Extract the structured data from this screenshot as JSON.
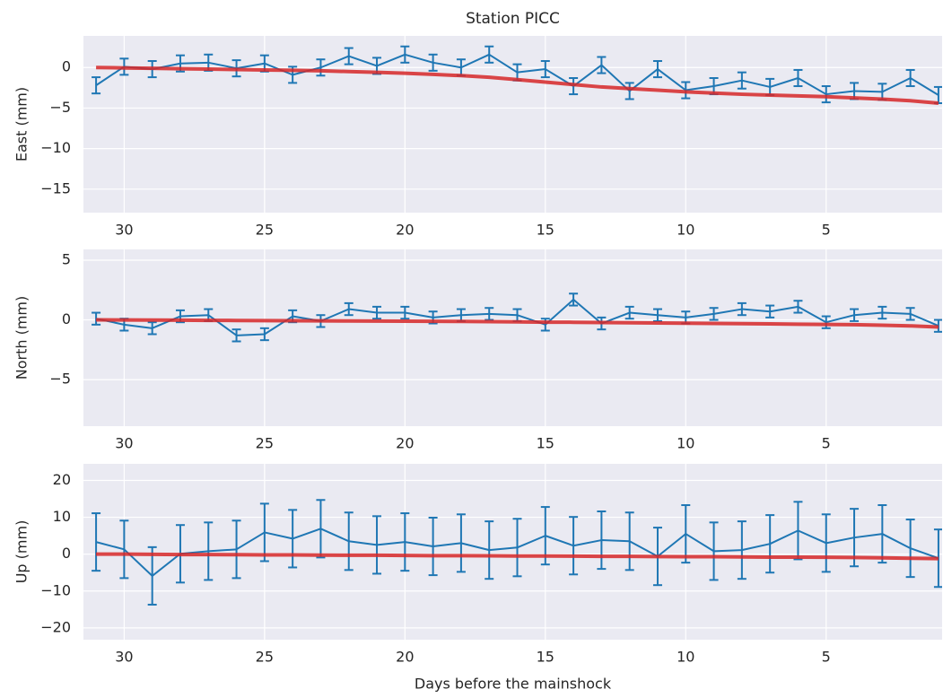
{
  "chart_data": [
    {
      "type": "line",
      "title": "Station PICC",
      "ylabel": "East (mm)",
      "x": [
        31,
        30,
        29,
        28,
        27,
        26,
        25,
        24,
        23,
        22,
        21,
        20,
        19,
        18,
        17,
        16,
        15,
        14,
        13,
        12,
        11,
        10,
        9,
        8,
        7,
        6,
        5,
        4,
        3,
        2,
        1
      ],
      "xlim": [
        31.45,
        0.87
      ],
      "xticks": [
        30,
        25,
        20,
        15,
        10,
        5
      ],
      "ylim": [
        -17.9,
        3.9
      ],
      "yticks": [
        0,
        {
          "value": -5,
          "label": "−5"
        },
        {
          "value": -10,
          "label": "−10"
        },
        {
          "value": -15,
          "label": "−15"
        }
      ],
      "grid": true,
      "series": [
        {
          "color": "#1f77b4",
          "values": [
            -2.2,
            0.1,
            -0.2,
            0.5,
            0.6,
            -0.1,
            0.5,
            -0.9,
            0,
            1.4,
            0.2,
            1.6,
            0.6,
            0,
            1.6,
            -0.6,
            -0.2,
            -2.3,
            0.3,
            -2.9,
            -0.2,
            -2.8,
            -2.3,
            -1.6,
            -2.4,
            -1.3,
            -3.3,
            -2.9,
            -3.0,
            -1.3,
            -3.4
          ],
          "errors": [
            1,
            1,
            1,
            1,
            1,
            1,
            1,
            1,
            1,
            1,
            1,
            1,
            1,
            1,
            1,
            1,
            1,
            1,
            1,
            1,
            1,
            1,
            1,
            1,
            1,
            1,
            1,
            1,
            1,
            1,
            1
          ]
        },
        {
          "color": "#d62728",
          "values": [
            0,
            -0.05,
            -0.1,
            -0.15,
            -0.2,
            -0.25,
            -0.3,
            -0.35,
            -0.4,
            -0.5,
            -0.6,
            -0.7,
            -0.85,
            -1.0,
            -1.2,
            -1.5,
            -1.8,
            -2.1,
            -2.4,
            -2.6,
            -2.8,
            -3.0,
            -3.15,
            -3.3,
            -3.4,
            -3.5,
            -3.6,
            -3.75,
            -3.9,
            -4.1,
            -4.4
          ]
        }
      ]
    },
    {
      "type": "line",
      "ylabel": "North (mm)",
      "x": [
        31,
        30,
        29,
        28,
        27,
        26,
        25,
        24,
        23,
        22,
        21,
        20,
        19,
        18,
        17,
        16,
        15,
        14,
        13,
        12,
        11,
        10,
        9,
        8,
        7,
        6,
        5,
        4,
        3,
        2,
        1
      ],
      "xlim": [
        31.45,
        0.87
      ],
      "xticks": [
        30,
        25,
        20,
        15,
        10,
        5
      ],
      "ylim": [
        -8.9,
        5.9
      ],
      "yticks": [
        5,
        0,
        {
          "value": -5,
          "label": "−5"
        }
      ],
      "grid": true,
      "series": [
        {
          "color": "#1f77b4",
          "values": [
            0.1,
            -0.4,
            -0.7,
            0.3,
            0.4,
            -1.3,
            -1.2,
            0.3,
            -0.1,
            0.9,
            0.6,
            0.6,
            0.2,
            0.4,
            0.5,
            0.4,
            -0.4,
            1.7,
            -0.3,
            0.6,
            0.4,
            0.2,
            0.5,
            0.9,
            0.7,
            1.1,
            -0.2,
            0.4,
            0.6,
            0.5,
            -0.5
          ],
          "errors": [
            0.5,
            0.5,
            0.5,
            0.5,
            0.5,
            0.5,
            0.5,
            0.5,
            0.5,
            0.5,
            0.5,
            0.5,
            0.5,
            0.5,
            0.5,
            0.5,
            0.5,
            0.5,
            0.5,
            0.5,
            0.5,
            0.5,
            0.5,
            0.5,
            0.5,
            0.5,
            0.5,
            0.5,
            0.5,
            0.5,
            0.5
          ]
        },
        {
          "color": "#d62728",
          "values": [
            0,
            -0.01,
            -0.02,
            -0.03,
            -0.04,
            -0.05,
            -0.06,
            -0.07,
            -0.08,
            -0.09,
            -0.1,
            -0.11,
            -0.12,
            -0.13,
            -0.15,
            -0.17,
            -0.19,
            -0.2,
            -0.22,
            -0.24,
            -0.26,
            -0.28,
            -0.3,
            -0.32,
            -0.34,
            -0.36,
            -0.38,
            -0.4,
            -0.45,
            -0.5,
            -0.6
          ]
        }
      ]
    },
    {
      "type": "line",
      "ylabel": "Up (mm)",
      "xlabel": "Days before the mainshock",
      "x": [
        31,
        30,
        29,
        28,
        27,
        26,
        25,
        24,
        23,
        22,
        21,
        20,
        19,
        18,
        17,
        16,
        15,
        14,
        13,
        12,
        11,
        10,
        9,
        8,
        7,
        6,
        5,
        4,
        3,
        2,
        1
      ],
      "xlim": [
        31.45,
        0.87
      ],
      "xticks": [
        30,
        25,
        20,
        15,
        10,
        5
      ],
      "ylim": [
        -23.2,
        24.5
      ],
      "yticks": [
        20,
        10,
        0,
        {
          "value": -10,
          "label": "−10"
        },
        {
          "value": -20,
          "label": "−20"
        }
      ],
      "grid": true,
      "series": [
        {
          "color": "#1f77b4",
          "values": [
            3.3,
            1.3,
            -5.9,
            0.1,
            0.8,
            1.3,
            5.9,
            4.2,
            6.9,
            3.5,
            2.5,
            3.3,
            2.1,
            3.0,
            1.1,
            1.8,
            5.0,
            2.3,
            3.8,
            3.5,
            -0.6,
            5.5,
            0.8,
            1.1,
            2.8,
            6.4,
            3.0,
            4.5,
            5.5,
            1.6,
            -1.1
          ],
          "errors": [
            7.8,
            7.8,
            7.8,
            7.8,
            7.8,
            7.8,
            7.8,
            7.8,
            7.8,
            7.8,
            7.8,
            7.8,
            7.8,
            7.8,
            7.8,
            7.8,
            7.8,
            7.8,
            7.8,
            7.8,
            7.8,
            7.8,
            7.8,
            7.8,
            7.8,
            7.8,
            7.8,
            7.8,
            7.8,
            7.8,
            7.8
          ]
        },
        {
          "color": "#d62728",
          "values": [
            0,
            0,
            -0.05,
            -0.1,
            -0.1,
            -0.15,
            -0.2,
            -0.2,
            -0.25,
            -0.3,
            -0.3,
            -0.35,
            -0.4,
            -0.4,
            -0.45,
            -0.5,
            -0.5,
            -0.55,
            -0.6,
            -0.6,
            -0.65,
            -0.7,
            -0.7,
            -0.75,
            -0.8,
            -0.8,
            -0.85,
            -0.9,
            -1.0,
            -1.1,
            -1.2
          ]
        }
      ]
    }
  ]
}
